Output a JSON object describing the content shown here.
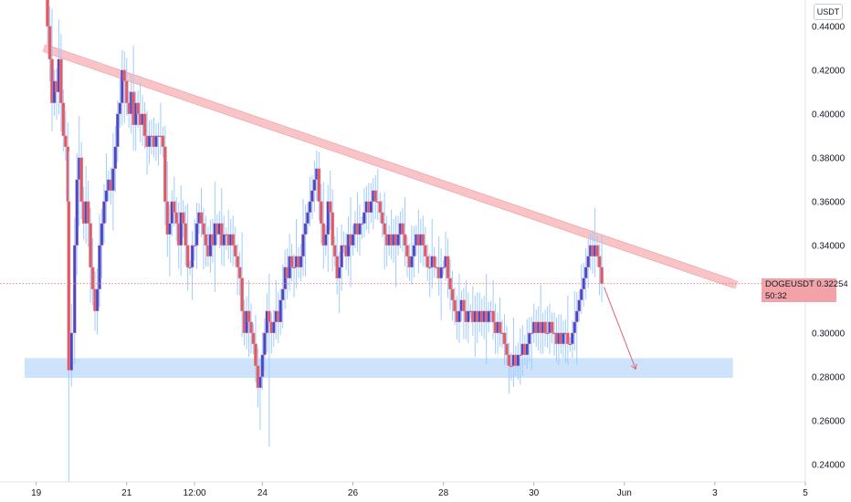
{
  "chart_data": {
    "type": "candlestick",
    "symbol": "DOGEUSDT",
    "currency": "USDT",
    "last_price": "0.32254",
    "countdown": "50:32",
    "y_ticks": [
      "0.44000",
      "0.42000",
      "0.40000",
      "0.38000",
      "0.36000",
      "0.34000",
      "0.30000",
      "0.28000",
      "0.26000",
      "0.24000"
    ],
    "x_ticks": [
      {
        "label": "19",
        "t": 0.0
      },
      {
        "label": "21",
        "t": 2.0
      },
      {
        "label": "12:00",
        "t": 3.5
      },
      {
        "label": "24",
        "t": 5.0
      },
      {
        "label": "26",
        "t": 7.0
      },
      {
        "label": "28",
        "t": 9.0
      },
      {
        "label": "30",
        "t": 11.0
      },
      {
        "label": "Jun",
        "t": 13.0
      },
      {
        "label": "3",
        "t": 15.0
      },
      {
        "label": "5",
        "t": 17.0
      }
    ],
    "ylim": [
      0.232,
      0.452
    ],
    "xlim": [
      -0.8,
      17.0
    ],
    "price_path": [
      [
        0.2,
        0.455
      ],
      [
        0.25,
        0.44
      ],
      [
        0.3,
        0.425
      ],
      [
        0.35,
        0.405
      ],
      [
        0.4,
        0.415
      ],
      [
        0.45,
        0.41
      ],
      [
        0.5,
        0.425
      ],
      [
        0.55,
        0.405
      ],
      [
        0.6,
        0.39
      ],
      [
        0.65,
        0.385
      ],
      [
        0.7,
        0.36
      ],
      [
        0.72,
        0.283
      ],
      [
        0.78,
        0.3
      ],
      [
        0.85,
        0.34
      ],
      [
        0.9,
        0.37
      ],
      [
        0.95,
        0.38
      ],
      [
        1.0,
        0.36
      ],
      [
        1.05,
        0.35
      ],
      [
        1.1,
        0.36
      ],
      [
        1.15,
        0.35
      ],
      [
        1.2,
        0.33
      ],
      [
        1.25,
        0.32
      ],
      [
        1.3,
        0.31
      ],
      [
        1.35,
        0.32
      ],
      [
        1.4,
        0.34
      ],
      [
        1.45,
        0.35
      ],
      [
        1.5,
        0.36
      ],
      [
        1.55,
        0.365
      ],
      [
        1.6,
        0.37
      ],
      [
        1.65,
        0.365
      ],
      [
        1.7,
        0.375
      ],
      [
        1.75,
        0.385
      ],
      [
        1.8,
        0.4
      ],
      [
        1.85,
        0.405
      ],
      [
        1.9,
        0.42
      ],
      [
        1.95,
        0.415
      ],
      [
        2.0,
        0.405
      ],
      [
        2.05,
        0.4
      ],
      [
        2.1,
        0.41
      ],
      [
        2.15,
        0.395
      ],
      [
        2.2,
        0.405
      ],
      [
        2.25,
        0.4
      ],
      [
        2.3,
        0.395
      ],
      [
        2.35,
        0.4
      ],
      [
        2.4,
        0.39
      ],
      [
        2.45,
        0.385
      ],
      [
        2.5,
        0.39
      ],
      [
        2.55,
        0.39
      ],
      [
        2.6,
        0.385
      ],
      [
        2.65,
        0.39
      ],
      [
        2.7,
        0.39
      ],
      [
        2.75,
        0.39
      ],
      [
        2.8,
        0.385
      ],
      [
        2.85,
        0.36
      ],
      [
        2.9,
        0.345
      ],
      [
        2.95,
        0.35
      ],
      [
        3.0,
        0.36
      ],
      [
        3.05,
        0.355
      ],
      [
        3.1,
        0.35
      ],
      [
        3.15,
        0.34
      ],
      [
        3.2,
        0.355
      ],
      [
        3.25,
        0.35
      ],
      [
        3.3,
        0.34
      ],
      [
        3.35,
        0.33
      ],
      [
        3.4,
        0.33
      ],
      [
        3.45,
        0.34
      ],
      [
        3.5,
        0.34
      ],
      [
        3.55,
        0.35
      ],
      [
        3.6,
        0.355
      ],
      [
        3.65,
        0.35
      ],
      [
        3.7,
        0.345
      ],
      [
        3.75,
        0.34
      ],
      [
        3.8,
        0.335
      ],
      [
        3.85,
        0.345
      ],
      [
        3.9,
        0.34
      ],
      [
        3.95,
        0.35
      ],
      [
        4.0,
        0.345
      ],
      [
        4.05,
        0.35
      ],
      [
        4.1,
        0.34
      ],
      [
        4.15,
        0.345
      ],
      [
        4.2,
        0.345
      ],
      [
        4.25,
        0.34
      ],
      [
        4.3,
        0.345
      ],
      [
        4.35,
        0.34
      ],
      [
        4.4,
        0.335
      ],
      [
        4.45,
        0.33
      ],
      [
        4.5,
        0.325
      ],
      [
        4.55,
        0.31
      ],
      [
        4.6,
        0.3
      ],
      [
        4.65,
        0.31
      ],
      [
        4.7,
        0.305
      ],
      [
        4.75,
        0.3
      ],
      [
        4.8,
        0.295
      ],
      [
        4.85,
        0.285
      ],
      [
        4.9,
        0.275
      ],
      [
        4.95,
        0.28
      ],
      [
        5.0,
        0.29
      ],
      [
        5.05,
        0.3
      ],
      [
        5.1,
        0.31
      ],
      [
        5.15,
        0.305
      ],
      [
        5.2,
        0.3
      ],
      [
        5.25,
        0.305
      ],
      [
        5.3,
        0.31
      ],
      [
        5.35,
        0.305
      ],
      [
        5.4,
        0.315
      ],
      [
        5.45,
        0.32
      ],
      [
        5.5,
        0.33
      ],
      [
        5.55,
        0.325
      ],
      [
        5.6,
        0.335
      ],
      [
        5.65,
        0.33
      ],
      [
        5.7,
        0.33
      ],
      [
        5.75,
        0.335
      ],
      [
        5.8,
        0.33
      ],
      [
        5.85,
        0.335
      ],
      [
        5.9,
        0.345
      ],
      [
        5.95,
        0.35
      ],
      [
        6.0,
        0.355
      ],
      [
        6.05,
        0.36
      ],
      [
        6.1,
        0.365
      ],
      [
        6.15,
        0.37
      ],
      [
        6.2,
        0.375
      ],
      [
        6.25,
        0.36
      ],
      [
        6.3,
        0.35
      ],
      [
        6.35,
        0.34
      ],
      [
        6.4,
        0.345
      ],
      [
        6.45,
        0.36
      ],
      [
        6.5,
        0.355
      ],
      [
        6.55,
        0.34
      ],
      [
        6.6,
        0.335
      ],
      [
        6.65,
        0.325
      ],
      [
        6.7,
        0.33
      ],
      [
        6.75,
        0.34
      ],
      [
        6.8,
        0.34
      ],
      [
        6.85,
        0.335
      ],
      [
        6.9,
        0.345
      ],
      [
        6.95,
        0.34
      ],
      [
        7.0,
        0.345
      ],
      [
        7.05,
        0.35
      ],
      [
        7.1,
        0.345
      ],
      [
        7.15,
        0.35
      ],
      [
        7.2,
        0.35
      ],
      [
        7.25,
        0.355
      ],
      [
        7.3,
        0.36
      ],
      [
        7.35,
        0.355
      ],
      [
        7.4,
        0.36
      ],
      [
        7.45,
        0.365
      ],
      [
        7.5,
        0.36
      ],
      [
        7.55,
        0.36
      ],
      [
        7.6,
        0.355
      ],
      [
        7.65,
        0.35
      ],
      [
        7.7,
        0.345
      ],
      [
        7.75,
        0.34
      ],
      [
        7.8,
        0.345
      ],
      [
        7.85,
        0.34
      ],
      [
        7.9,
        0.345
      ],
      [
        7.95,
        0.34
      ],
      [
        8.0,
        0.345
      ],
      [
        8.05,
        0.35
      ],
      [
        8.1,
        0.345
      ],
      [
        8.15,
        0.34
      ],
      [
        8.2,
        0.335
      ],
      [
        8.25,
        0.33
      ],
      [
        8.3,
        0.335
      ],
      [
        8.35,
        0.34
      ],
      [
        8.4,
        0.345
      ],
      [
        8.45,
        0.34
      ],
      [
        8.5,
        0.345
      ],
      [
        8.55,
        0.34
      ],
      [
        8.6,
        0.335
      ],
      [
        8.65,
        0.33
      ],
      [
        8.7,
        0.33
      ],
      [
        8.75,
        0.335
      ],
      [
        8.8,
        0.33
      ],
      [
        8.85,
        0.33
      ],
      [
        8.9,
        0.325
      ],
      [
        8.95,
        0.33
      ],
      [
        9.0,
        0.33
      ],
      [
        9.05,
        0.335
      ],
      [
        9.1,
        0.325
      ],
      [
        9.15,
        0.32
      ],
      [
        9.2,
        0.315
      ],
      [
        9.25,
        0.31
      ],
      [
        9.3,
        0.305
      ],
      [
        9.35,
        0.31
      ],
      [
        9.4,
        0.315
      ],
      [
        9.45,
        0.31
      ],
      [
        9.5,
        0.305
      ],
      [
        9.55,
        0.31
      ],
      [
        9.6,
        0.31
      ],
      [
        9.65,
        0.305
      ],
      [
        9.7,
        0.31
      ],
      [
        9.75,
        0.305
      ],
      [
        9.8,
        0.31
      ],
      [
        9.85,
        0.305
      ],
      [
        9.9,
        0.31
      ],
      [
        9.95,
        0.305
      ],
      [
        10.0,
        0.31
      ],
      [
        10.05,
        0.31
      ],
      [
        10.1,
        0.305
      ],
      [
        10.15,
        0.3
      ],
      [
        10.2,
        0.305
      ],
      [
        10.25,
        0.3
      ],
      [
        10.3,
        0.3
      ],
      [
        10.35,
        0.295
      ],
      [
        10.4,
        0.29
      ],
      [
        10.45,
        0.285
      ],
      [
        10.5,
        0.285
      ],
      [
        10.55,
        0.29
      ],
      [
        10.6,
        0.285
      ],
      [
        10.65,
        0.29
      ],
      [
        10.7,
        0.29
      ],
      [
        10.75,
        0.295
      ],
      [
        10.8,
        0.29
      ],
      [
        10.85,
        0.295
      ],
      [
        10.9,
        0.3
      ],
      [
        10.95,
        0.3
      ],
      [
        11.0,
        0.305
      ],
      [
        11.05,
        0.3
      ],
      [
        11.1,
        0.305
      ],
      [
        11.15,
        0.3
      ],
      [
        11.2,
        0.305
      ],
      [
        11.25,
        0.3
      ],
      [
        11.3,
        0.3
      ],
      [
        11.35,
        0.305
      ],
      [
        11.4,
        0.3
      ],
      [
        11.45,
        0.3
      ],
      [
        11.5,
        0.295
      ],
      [
        11.55,
        0.3
      ],
      [
        11.6,
        0.295
      ],
      [
        11.65,
        0.3
      ],
      [
        11.7,
        0.3
      ],
      [
        11.75,
        0.295
      ],
      [
        11.8,
        0.295
      ],
      [
        11.85,
        0.3
      ],
      [
        11.9,
        0.305
      ],
      [
        11.95,
        0.31
      ],
      [
        12.0,
        0.315
      ],
      [
        12.05,
        0.32
      ],
      [
        12.1,
        0.325
      ],
      [
        12.15,
        0.33
      ],
      [
        12.2,
        0.335
      ],
      [
        12.25,
        0.34
      ],
      [
        12.3,
        0.335
      ],
      [
        12.35,
        0.34
      ],
      [
        12.4,
        0.335
      ],
      [
        12.45,
        0.33
      ],
      [
        12.5,
        0.3225
      ]
    ],
    "trendline": {
      "x": [
        0.25,
        15.4
      ],
      "y": [
        0.4295,
        0.3225
      ]
    },
    "support_zone": {
      "x": [
        -0.8,
        15.4
      ],
      "y": [
        0.2795,
        0.2885
      ]
    },
    "projection_arrow": {
      "x": [
        12.55,
        13.25
      ],
      "y": [
        0.321,
        0.2835
      ]
    },
    "colors": {
      "up": "#3c4bd6",
      "down": "#e05a64",
      "wick": "#9fcbff",
      "outline": "#e89098",
      "trendline": "#f9c4c7",
      "support": "#cce3fb",
      "arrow": "#e0646d",
      "price_line": "#e8737b",
      "badge": "#f1a3a8",
      "axis_text": "#131722"
    }
  }
}
